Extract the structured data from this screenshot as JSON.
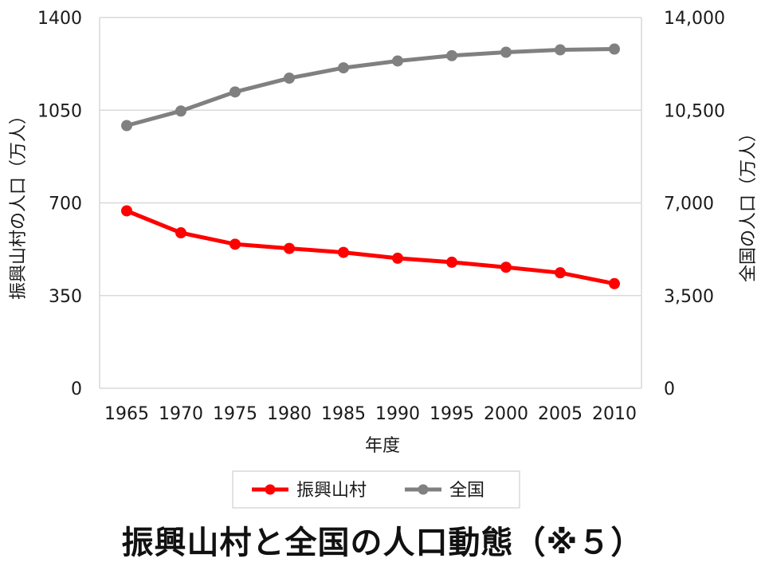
{
  "chart_data": {
    "type": "line",
    "x": [
      "1965",
      "1970",
      "1975",
      "1980",
      "1985",
      "1990",
      "1995",
      "2000",
      "2005",
      "2010"
    ],
    "xlabel": "年度",
    "ylabel_left": "振興山村の人口（万人）",
    "ylabel_right": "全国の人口（万人）",
    "ylim_left": [
      0,
      1400
    ],
    "ylim_right": [
      0,
      14000
    ],
    "yticks_left": [
      "0",
      "350",
      "700",
      "1050",
      "1400"
    ],
    "yticks_right": [
      "0",
      "3,500",
      "7,000",
      "10,500",
      "14,000"
    ],
    "grid": true,
    "legend_position": "bottom",
    "series": [
      {
        "name": "振興山村",
        "axis": "left",
        "color": "#ff0000",
        "values": [
          670,
          587,
          544,
          528,
          513,
          491,
          476,
          457,
          436,
          395
        ]
      },
      {
        "name": "全国",
        "axis": "right",
        "color": "#808080",
        "values": [
          9920,
          10470,
          11190,
          11710,
          12100,
          12360,
          12560,
          12690,
          12780,
          12810
        ]
      }
    ]
  },
  "caption": "振興山村と全国の人口動態（※５）"
}
